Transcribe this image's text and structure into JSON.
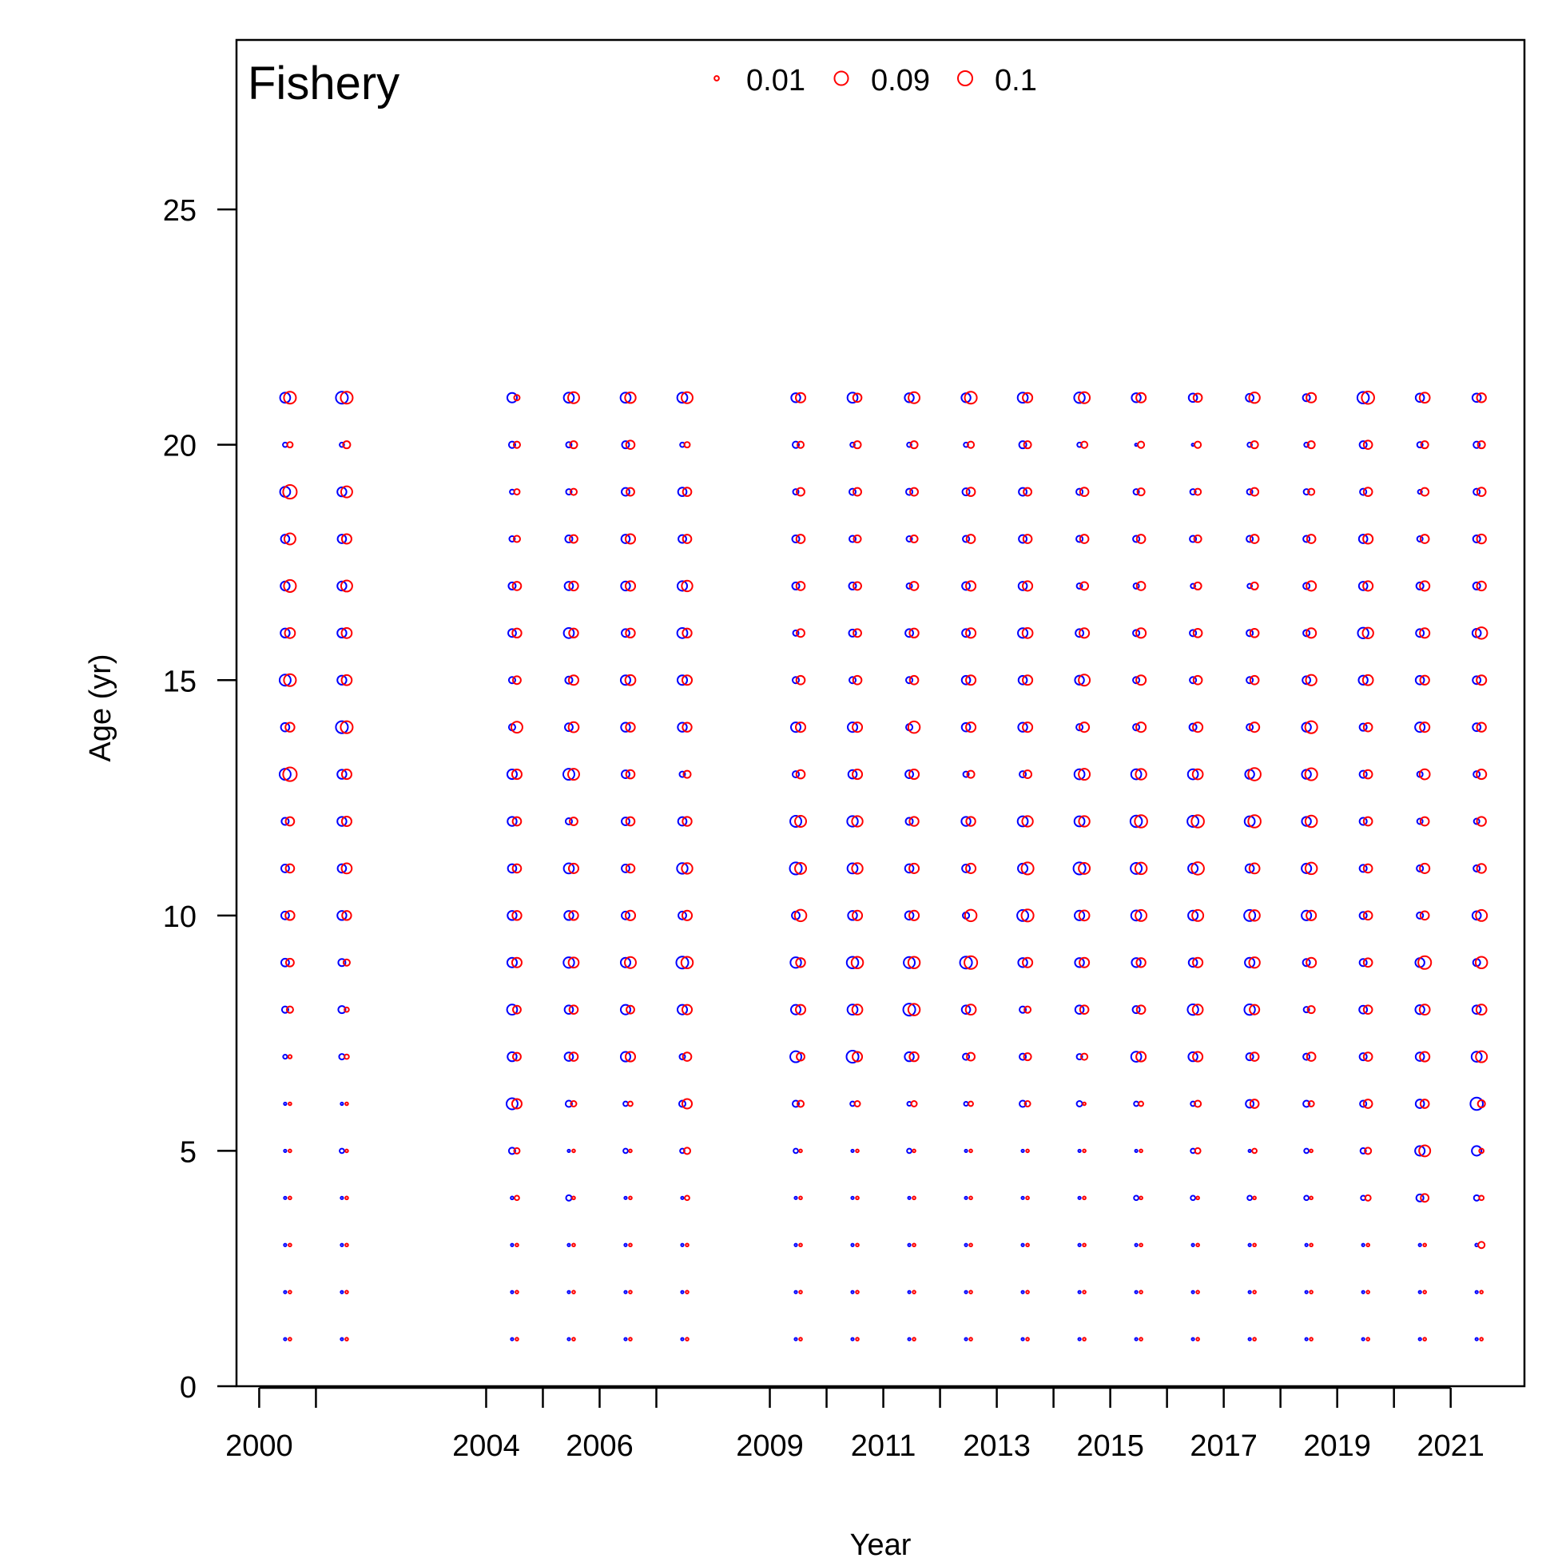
{
  "chart_data": {
    "type": "scatter",
    "subtype": "bubble-pair",
    "panel_label": "Fishery",
    "xlabel": "Year",
    "ylabel": "Age (yr)",
    "xlim": [
      1999.6,
      2022.3
    ],
    "ylim": [
      0,
      28.6
    ],
    "x_tick_values": [
      2000,
      2001,
      2004,
      2005,
      2006,
      2007,
      2009,
      2010,
      2011,
      2012,
      2013,
      2014,
      2015,
      2016,
      2017,
      2018,
      2019,
      2020,
      2021
    ],
    "x_tick_labels": [
      "2000",
      "2004",
      "2006",
      "2009",
      "2011",
      "2013",
      "2015",
      "2017",
      "2019",
      "2021"
    ],
    "y_ticks": [
      0,
      5,
      10,
      15,
      20,
      25
    ],
    "legend": {
      "placement": "top-center",
      "entries": [
        {
          "label": "0.01",
          "value": 0.01
        },
        {
          "label": "0.09",
          "value": 0.09
        },
        {
          "label": "0.1",
          "value": 0.1
        }
      ],
      "color": "#ff0000"
    },
    "series_colors": {
      "first": "#0000ff",
      "second": "#ff0000"
    },
    "grid": false,
    "bubble_max_value": 0.1,
    "years": [
      2000,
      2001,
      2004,
      2005,
      2006,
      2007,
      2009,
      2010,
      2011,
      2012,
      2013,
      2014,
      2015,
      2016,
      2017,
      2018,
      2019,
      2020,
      2021
    ],
    "ages": [
      1,
      2,
      3,
      4,
      5,
      6,
      7,
      8,
      9,
      10,
      11,
      12,
      13,
      14,
      15,
      16,
      17,
      18,
      19,
      20,
      21
    ],
    "columns": [
      {
        "year": 2000,
        "blue": [
          0.003,
          0.003,
          0.003,
          0.003,
          0.003,
          0.003,
          0.008,
          0.02,
          0.03,
          0.03,
          0.03,
          0.025,
          0.06,
          0.035,
          0.06,
          0.04,
          0.04,
          0.035,
          0.05,
          0.01,
          0.05
        ],
        "red": [
          0.004,
          0.004,
          0.004,
          0.004,
          0.004,
          0.004,
          0.006,
          0.02,
          0.03,
          0.04,
          0.035,
          0.035,
          0.09,
          0.04,
          0.07,
          0.05,
          0.07,
          0.06,
          0.09,
          0.015,
          0.07
        ]
      },
      {
        "year": 2001,
        "blue": [
          0.003,
          0.003,
          0.003,
          0.003,
          0.01,
          0.003,
          0.015,
          0.025,
          0.025,
          0.04,
          0.035,
          0.04,
          0.04,
          0.07,
          0.04,
          0.04,
          0.04,
          0.035,
          0.04,
          0.01,
          0.07
        ],
        "red": [
          0.004,
          0.004,
          0.004,
          0.004,
          0.004,
          0.004,
          0.01,
          0.01,
          0.02,
          0.04,
          0.05,
          0.045,
          0.045,
          0.07,
          0.05,
          0.05,
          0.06,
          0.045,
          0.06,
          0.025,
          0.07
        ]
      },
      {
        "year": 2004,
        "blue": [
          0.003,
          0.003,
          0.003,
          0.004,
          0.02,
          0.06,
          0.04,
          0.05,
          0.045,
          0.04,
          0.035,
          0.04,
          0.045,
          0.02,
          0.02,
          0.03,
          0.025,
          0.015,
          0.01,
          0.02,
          0.045
        ],
        "red": [
          0.004,
          0.004,
          0.004,
          0.01,
          0.015,
          0.045,
          0.03,
          0.03,
          0.045,
          0.04,
          0.035,
          0.035,
          0.045,
          0.06,
          0.03,
          0.04,
          0.035,
          0.02,
          0.015,
          0.02,
          0.015
        ]
      },
      {
        "year": 2005,
        "blue": [
          0.003,
          0.003,
          0.003,
          0.015,
          0.003,
          0.02,
          0.035,
          0.035,
          0.055,
          0.04,
          0.05,
          0.02,
          0.06,
          0.03,
          0.025,
          0.05,
          0.035,
          0.025,
          0.015,
          0.015,
          0.05
        ],
        "red": [
          0.004,
          0.004,
          0.004,
          0.004,
          0.004,
          0.015,
          0.035,
          0.035,
          0.05,
          0.04,
          0.045,
          0.03,
          0.06,
          0.05,
          0.045,
          0.04,
          0.04,
          0.03,
          0.02,
          0.025,
          0.06
        ]
      },
      {
        "year": 2006,
        "blue": [
          0.003,
          0.003,
          0.003,
          0.003,
          0.01,
          0.01,
          0.045,
          0.045,
          0.045,
          0.03,
          0.03,
          0.03,
          0.03,
          0.04,
          0.045,
          0.03,
          0.04,
          0.035,
          0.03,
          0.025,
          0.05
        ],
        "red": [
          0.004,
          0.004,
          0.004,
          0.004,
          0.004,
          0.01,
          0.045,
          0.03,
          0.06,
          0.045,
          0.035,
          0.035,
          0.035,
          0.04,
          0.05,
          0.04,
          0.045,
          0.045,
          0.03,
          0.035,
          0.055
        ]
      },
      {
        "year": 2007,
        "blue": [
          0.003,
          0.003,
          0.003,
          0.003,
          0.01,
          0.02,
          0.015,
          0.045,
          0.07,
          0.03,
          0.055,
          0.035,
          0.015,
          0.04,
          0.045,
          0.05,
          0.045,
          0.03,
          0.035,
          0.01,
          0.05
        ],
        "red": [
          0.004,
          0.004,
          0.004,
          0.01,
          0.02,
          0.045,
          0.035,
          0.045,
          0.065,
          0.045,
          0.055,
          0.04,
          0.025,
          0.04,
          0.045,
          0.04,
          0.055,
          0.035,
          0.035,
          0.015,
          0.06
        ]
      },
      {
        "year": 2009,
        "blue": [
          0.003,
          0.003,
          0.003,
          0.003,
          0.01,
          0.02,
          0.06,
          0.045,
          0.055,
          0.03,
          0.07,
          0.06,
          0.02,
          0.045,
          0.02,
          0.015,
          0.025,
          0.025,
          0.015,
          0.02,
          0.04
        ],
        "red": [
          0.004,
          0.004,
          0.004,
          0.004,
          0.004,
          0.02,
          0.03,
          0.045,
          0.04,
          0.065,
          0.06,
          0.06,
          0.035,
          0.045,
          0.035,
          0.03,
          0.035,
          0.035,
          0.03,
          0.02,
          0.045
        ]
      },
      {
        "year": 2010,
        "blue": [
          0.003,
          0.003,
          0.003,
          0.003,
          0.003,
          0.01,
          0.07,
          0.05,
          0.065,
          0.04,
          0.05,
          0.055,
          0.035,
          0.045,
          0.02,
          0.025,
          0.025,
          0.02,
          0.02,
          0.01,
          0.05
        ],
        "red": [
          0.004,
          0.004,
          0.004,
          0.004,
          0.004,
          0.015,
          0.045,
          0.05,
          0.065,
          0.045,
          0.055,
          0.055,
          0.045,
          0.045,
          0.035,
          0.03,
          0.03,
          0.025,
          0.03,
          0.025,
          0.035
        ]
      },
      {
        "year": 2011,
        "blue": [
          0.003,
          0.003,
          0.003,
          0.003,
          0.01,
          0.008,
          0.04,
          0.07,
          0.06,
          0.035,
          0.035,
          0.025,
          0.03,
          0.02,
          0.02,
          0.03,
          0.015,
          0.015,
          0.02,
          0.01,
          0.04
        ],
        "red": [
          0.004,
          0.004,
          0.004,
          0.004,
          0.004,
          0.015,
          0.04,
          0.065,
          0.065,
          0.045,
          0.045,
          0.04,
          0.045,
          0.065,
          0.035,
          0.04,
          0.035,
          0.025,
          0.03,
          0.025,
          0.06
        ]
      },
      {
        "year": 2012,
        "blue": [
          0.003,
          0.003,
          0.003,
          0.003,
          0.003,
          0.008,
          0.02,
          0.035,
          0.07,
          0.02,
          0.03,
          0.04,
          0.015,
          0.035,
          0.035,
          0.03,
          0.03,
          0.02,
          0.025,
          0.01,
          0.04
        ],
        "red": [
          0.004,
          0.004,
          0.004,
          0.004,
          0.004,
          0.01,
          0.03,
          0.05,
          0.08,
          0.065,
          0.045,
          0.04,
          0.025,
          0.045,
          0.045,
          0.045,
          0.045,
          0.035,
          0.035,
          0.02,
          0.07
        ]
      },
      {
        "year": 2013,
        "blue": [
          0.003,
          0.003,
          0.003,
          0.003,
          0.003,
          0.02,
          0.02,
          0.02,
          0.04,
          0.06,
          0.045,
          0.05,
          0.02,
          0.04,
          0.035,
          0.045,
          0.035,
          0.03,
          0.03,
          0.025,
          0.05
        ],
        " red_note": "",
        "red": [
          0.004,
          0.004,
          0.004,
          0.004,
          0.004,
          0.015,
          0.025,
          0.02,
          0.045,
          0.07,
          0.07,
          0.055,
          0.03,
          0.045,
          0.045,
          0.05,
          0.045,
          0.035,
          0.03,
          0.025,
          0.045
        ]
      },
      {
        "year": 2014,
        "blue": [
          0.003,
          0.003,
          0.003,
          0.003,
          0.003,
          0.015,
          0.015,
          0.035,
          0.04,
          0.045,
          0.07,
          0.05,
          0.05,
          0.02,
          0.04,
          0.03,
          0.015,
          0.02,
          0.02,
          0.01,
          0.055
        ],
        "red": [
          0.004,
          0.004,
          0.004,
          0.004,
          0.004,
          0.004,
          0.02,
          0.035,
          0.045,
          0.05,
          0.06,
          0.055,
          0.06,
          0.045,
          0.06,
          0.045,
          0.03,
          0.035,
          0.035,
          0.02,
          0.06
        ]
      },
      {
        "year": 2015,
        "blue": [
          0.003,
          0.003,
          0.003,
          0.01,
          0.003,
          0.01,
          0.05,
          0.025,
          0.04,
          0.05,
          0.06,
          0.065,
          0.05,
          0.02,
          0.02,
          0.02,
          0.015,
          0.02,
          0.015,
          0.003,
          0.04
        ],
        "red": [
          0.004,
          0.004,
          0.004,
          0.004,
          0.004,
          0.01,
          0.045,
          0.035,
          0.04,
          0.06,
          0.065,
          0.075,
          0.055,
          0.045,
          0.045,
          0.045,
          0.035,
          0.035,
          0.025,
          0.02,
          0.045
        ]
      },
      {
        "year": 2016,
        "blue": [
          0.003,
          0.003,
          0.003,
          0.01,
          0.01,
          0.01,
          0.04,
          0.055,
          0.035,
          0.045,
          0.045,
          0.06,
          0.05,
          0.025,
          0.02,
          0.02,
          0.01,
          0.02,
          0.015,
          0.003,
          0.035
        ],
        "red": [
          0.004,
          0.004,
          0.004,
          0.004,
          0.015,
          0.02,
          0.045,
          0.05,
          0.045,
          0.06,
          0.075,
          0.075,
          0.05,
          0.045,
          0.035,
          0.035,
          0.025,
          0.025,
          0.02,
          0.02,
          0.035
        ]
      },
      {
        "year": 2017,
        "blue": [
          0.003,
          0.003,
          0.003,
          0.01,
          0.003,
          0.03,
          0.025,
          0.055,
          0.045,
          0.06,
          0.035,
          0.05,
          0.04,
          0.02,
          0.02,
          0.02,
          0.01,
          0.02,
          0.015,
          0.01,
          0.03
        ],
        "red": [
          0.004,
          0.004,
          0.004,
          0.004,
          0.01,
          0.035,
          0.035,
          0.045,
          0.055,
          0.055,
          0.05,
          0.075,
          0.075,
          0.045,
          0.035,
          0.035,
          0.025,
          0.035,
          0.03,
          0.025,
          0.055
        ]
      },
      {
        "year": 2018,
        "blue": [
          0.003,
          0.003,
          0.003,
          0.01,
          0.01,
          0.02,
          0.02,
          0.015,
          0.025,
          0.045,
          0.045,
          0.04,
          0.04,
          0.04,
          0.03,
          0.02,
          0.02,
          0.02,
          0.015,
          0.01,
          0.025
        ],
        "red": [
          0.004,
          0.004,
          0.004,
          0.004,
          0.004,
          0.015,
          0.035,
          0.025,
          0.045,
          0.045,
          0.065,
          0.065,
          0.07,
          0.07,
          0.055,
          0.045,
          0.045,
          0.035,
          0.02,
          0.025,
          0.045
        ]
      },
      {
        "year": 2019,
        "blue": [
          0.003,
          0.003,
          0.003,
          0.01,
          0.015,
          0.02,
          0.025,
          0.03,
          0.025,
          0.025,
          0.025,
          0.025,
          0.025,
          0.025,
          0.04,
          0.055,
          0.035,
          0.035,
          0.02,
          0.025,
          0.065
        ],
        "red": [
          0.004,
          0.004,
          0.004,
          0.015,
          0.02,
          0.035,
          0.035,
          0.035,
          0.035,
          0.035,
          0.035,
          0.035,
          0.035,
          0.035,
          0.05,
          0.055,
          0.045,
          0.045,
          0.035,
          0.035,
          0.075
        ]
      },
      {
        "year": 2020,
        "blue": [
          0.003,
          0.003,
          0.003,
          0.025,
          0.045,
          0.035,
          0.035,
          0.04,
          0.04,
          0.02,
          0.02,
          0.015,
          0.015,
          0.045,
          0.035,
          0.03,
          0.025,
          0.015,
          0.008,
          0.015,
          0.035
        ],
        "red": [
          0.004,
          0.004,
          0.004,
          0.03,
          0.06,
          0.035,
          0.045,
          0.05,
          0.08,
          0.035,
          0.045,
          0.035,
          0.05,
          0.045,
          0.04,
          0.045,
          0.045,
          0.035,
          0.03,
          0.025,
          0.05
        ]
      },
      {
        "year": 2021,
        "blue": [
          0.003,
          0.003,
          0.004,
          0.015,
          0.045,
          0.075,
          0.05,
          0.035,
          0.025,
          0.035,
          0.02,
          0.015,
          0.02,
          0.03,
          0.03,
          0.035,
          0.025,
          0.025,
          0.02,
          0.02,
          0.035
        ],
        "red": [
          0.004,
          0.004,
          0.02,
          0.01,
          0.01,
          0.025,
          0.06,
          0.05,
          0.065,
          0.06,
          0.04,
          0.04,
          0.045,
          0.04,
          0.045,
          0.065,
          0.04,
          0.04,
          0.035,
          0.025,
          0.04
        ]
      }
    ]
  }
}
